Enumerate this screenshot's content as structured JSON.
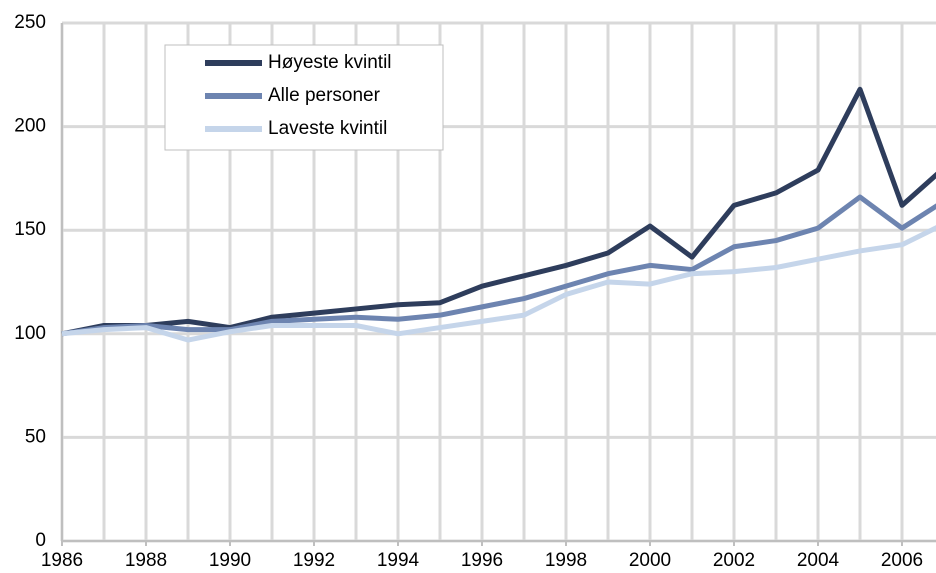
{
  "chart_data": {
    "type": "line",
    "x": [
      1986,
      1987,
      1988,
      1989,
      1990,
      1991,
      1992,
      1993,
      1994,
      1995,
      1996,
      1997,
      1998,
      1999,
      2000,
      2001,
      2002,
      2003,
      2004,
      2005,
      2006,
      2007
    ],
    "series": [
      {
        "name": "Høyeste kvintil",
        "color": "#2e3d5c",
        "values": [
          100,
          104,
          104,
          106,
          103,
          108,
          110,
          112,
          114,
          115,
          123,
          128,
          133,
          139,
          152,
          137,
          162,
          168,
          179,
          218,
          162,
          180
        ]
      },
      {
        "name": "Alle personer",
        "color": "#6d84b0",
        "values": [
          100,
          103,
          104,
          102,
          102,
          106,
          107,
          108,
          107,
          109,
          113,
          117,
          123,
          129,
          133,
          131,
          142,
          145,
          151,
          166,
          151,
          164
        ]
      },
      {
        "name": "Laveste kvintil",
        "color": "#c5d5ea",
        "values": [
          100,
          102,
          103,
          97,
          101,
          104,
          104,
          104,
          100,
          103,
          106,
          109,
          119,
          125,
          124,
          129,
          130,
          132,
          136,
          140,
          143,
          153
        ]
      }
    ],
    "xlim": [
      1986,
      2007
    ],
    "xticks": [
      1986,
      1988,
      1990,
      1992,
      1994,
      1996,
      1998,
      2000,
      2002,
      2004,
      2006
    ],
    "ylim": [
      0,
      250
    ],
    "yticks": [
      0,
      50,
      100,
      150,
      200,
      250
    ],
    "grid": true
  }
}
